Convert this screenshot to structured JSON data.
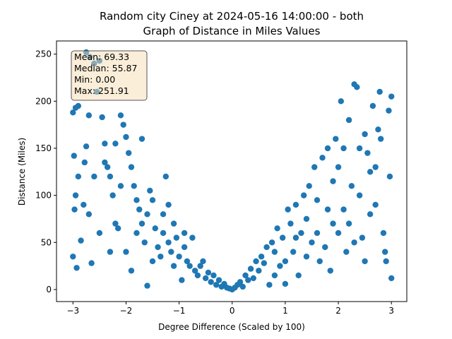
{
  "chart_data": {
    "type": "scatter",
    "title": [
      "Random city Ciney at 2024-05-16 14:00:00  - both",
      "Graph of Distance in Miles Values"
    ],
    "xlabel": "Degree Difference (Scaled by 100)",
    "ylabel": "Distance (Miles)",
    "color": "#1f77b4",
    "annotation": [
      "Mean: 69.33",
      "Median: 55.87",
      "Min: 0.00",
      "Max: 251.91"
    ],
    "xlim": [
      -3.31,
      3.29
    ],
    "ylim": [
      -12.8,
      264
    ],
    "xticks": [
      {
        "value": -3,
        "label": "−3"
      },
      {
        "value": -2,
        "label": "−2"
      },
      {
        "value": -1,
        "label": "−1"
      },
      0,
      1,
      2,
      3
    ],
    "yticks": [
      0,
      50,
      100,
      150,
      200,
      250
    ],
    "x": [
      -3.0,
      -2.95,
      -2.9,
      -2.98,
      -2.95,
      -2.97,
      -2.93,
      -3.0,
      -2.85,
      -2.78,
      -2.75,
      -2.7,
      -2.68,
      -2.75,
      -2.6,
      -2.55,
      -2.5,
      -2.45,
      -2.4,
      -2.35,
      -2.3,
      -2.25,
      -2.2,
      -2.15,
      -2.1,
      -2.05,
      -2.0,
      -1.95,
      -1.9,
      -1.85,
      -1.8,
      -1.75,
      -1.7,
      -1.65,
      -1.6,
      -1.55,
      -1.5,
      -1.45,
      -1.4,
      -1.35,
      -1.3,
      -1.25,
      -1.2,
      -1.15,
      -1.1,
      -1.05,
      -1.0,
      -0.95,
      -0.9,
      -0.85,
      -0.8,
      -0.75,
      -0.7,
      -0.65,
      -0.6,
      -0.55,
      -0.5,
      -0.45,
      -0.4,
      -0.35,
      -0.3,
      -0.25,
      -0.2,
      -0.15,
      -0.1,
      -0.05,
      -2.8,
      -2.7,
      -2.65,
      -2.6,
      -2.5,
      -2.4,
      -2.2,
      -2.0,
      -1.9,
      -1.8,
      -1.7,
      -1.5,
      -1.3,
      -1.1,
      -0.9,
      -2.9,
      -2.3,
      -2.1,
      -1.6,
      -1.2,
      0.0,
      0.05,
      0.1,
      0.15,
      0.2,
      0.25,
      0.3,
      0.35,
      0.4,
      0.45,
      0.5,
      0.55,
      0.6,
      0.65,
      0.7,
      0.75,
      0.8,
      0.85,
      0.9,
      0.95,
      1.0,
      1.05,
      1.1,
      1.15,
      1.2,
      1.25,
      1.3,
      1.35,
      1.4,
      1.45,
      1.5,
      1.55,
      1.6,
      1.65,
      1.7,
      1.75,
      1.8,
      1.85,
      1.9,
      1.95,
      2.0,
      2.05,
      2.1,
      2.15,
      2.2,
      2.25,
      2.3,
      2.35,
      2.4,
      2.45,
      2.5,
      2.55,
      2.6,
      2.65,
      2.7,
      2.75,
      2.8,
      2.85,
      2.9,
      2.95,
      3.0,
      3.0,
      2.97,
      2.88,
      2.78,
      2.6,
      2.4,
      2.2,
      2.0,
      1.8,
      1.6,
      1.4,
      1.2,
      1.0,
      0.8,
      2.5,
      2.3,
      1.9,
      2.7,
      2.1
    ],
    "y": [
      188,
      193,
      195,
      142,
      100,
      85,
      23,
      35,
      52,
      135,
      152,
      185,
      247,
      252,
      240,
      210,
      243,
      183,
      155,
      130,
      120,
      100,
      70,
      65,
      185,
      175,
      162,
      145,
      130,
      110,
      95,
      85,
      70,
      50,
      4,
      105,
      95,
      65,
      45,
      35,
      80,
      120,
      50,
      40,
      70,
      55,
      35,
      10,
      45,
      30,
      25,
      55,
      20,
      15,
      25,
      30,
      12,
      18,
      8,
      15,
      5,
      10,
      3,
      6,
      2,
      1,
      90,
      80,
      28,
      120,
      60,
      135,
      155,
      40,
      20,
      60,
      160,
      30,
      60,
      25,
      60,
      120,
      40,
      110,
      80,
      90,
      0,
      2,
      5,
      8,
      3,
      15,
      10,
      22,
      12,
      30,
      20,
      35,
      28,
      45,
      5,
      50,
      40,
      65,
      25,
      55,
      6,
      85,
      70,
      40,
      90,
      15,
      60,
      100,
      75,
      110,
      50,
      130,
      95,
      30,
      140,
      45,
      150,
      20,
      115,
      160,
      60,
      200,
      85,
      40,
      180,
      110,
      218,
      215,
      100,
      55,
      165,
      145,
      125,
      195,
      90,
      170,
      160,
      60,
      30,
      190,
      205,
      12,
      120,
      40,
      210,
      80,
      150,
      70,
      130,
      85,
      60,
      35,
      55,
      30,
      15,
      30,
      50,
      70,
      130,
      150
    ]
  }
}
